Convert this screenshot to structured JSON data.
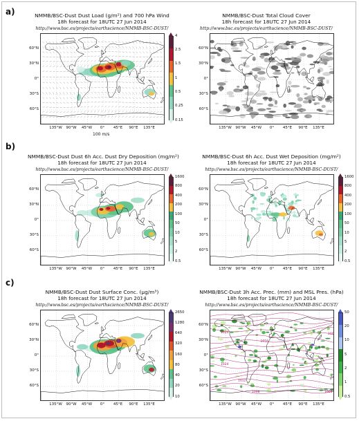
{
  "panel_letters": [
    "a)",
    "b)",
    "c)"
  ],
  "source_url": "http://www.bsc.es/projects/earthscience/NMMB-BSC-DUST/",
  "lat_labels": [
    "60°N",
    "30°N",
    "0°",
    "30°S",
    "60°S"
  ],
  "lon_labels": [
    "135°W",
    "90°W",
    "45°W",
    "0°",
    "45°E",
    "90°E",
    "135°E"
  ],
  "panels": [
    {
      "title": "NMMB/BSC-Dust Dust Load (g/m²) and 700 hPa Wind",
      "subtitle": "18h forecast for 18UTC 27 Jun 2014",
      "vector_key": "100 m/s",
      "colorbar": {
        "labels": [
          "4",
          "2.5",
          "1.5",
          "1",
          "0.5",
          "0.25",
          "0.15"
        ],
        "colors": [
          "#5b1f3c",
          "#b2182b",
          "#e8652b",
          "#f5c13d",
          "#5ec28a",
          "#8fd6c0",
          "#d7efe9"
        ]
      }
    },
    {
      "title": "NMMB/BSC-Dust Total Cloud Cover",
      "subtitle": "18h forecast for 18UTC 27 Jun 2014"
    },
    {
      "title": "NMMB/BSC-Dust Dust 6h Acc. Dust Dry Deposition (mg/m²)",
      "subtitle": "18h forecast for 18UTC 27 Jun 2014",
      "colorbar": {
        "labels": [
          "1600",
          "800",
          "400",
          "200",
          "100",
          "50",
          "10",
          "5",
          "2",
          "0.5"
        ],
        "colors": [
          "#5b1f3c",
          "#b2182b",
          "#e8652b",
          "#f5c13d",
          "#3aa67a",
          "#5ec28a",
          "#7ccfa8",
          "#a3dfc9",
          "#c5ece0",
          "#e6f6f1"
        ]
      }
    },
    {
      "title": "NMMB/BSC-Dust 6h Acc. Dust Wet Deposition (mg/m²)",
      "subtitle": "18h forecast for 18UTC 27 Jun 2014",
      "colorbar": {
        "labels": [
          "1600",
          "800",
          "400",
          "200",
          "100",
          "50",
          "10",
          "5",
          "2",
          "0.5"
        ],
        "colors": [
          "#5b1f3c",
          "#b2182b",
          "#e8652b",
          "#f5c13d",
          "#3aa67a",
          "#5ec28a",
          "#7ccfa8",
          "#a3dfc9",
          "#c5ece0",
          "#e6f6f1"
        ]
      }
    },
    {
      "title": "NMMB/BSC-Dust Dust Surface Conc. (μg/m³)",
      "subtitle": "18h forecast for 18UTC 27 Jun 2014",
      "colorbar": {
        "labels": [
          "2650",
          "1280",
          "640",
          "320",
          "160",
          "80",
          "40",
          "20",
          "10"
        ],
        "colors": [
          "#4b3a78",
          "#7a2e6a",
          "#b2182b",
          "#e2562c",
          "#f0a03c",
          "#f5c13d",
          "#5ec28a",
          "#8fd6c0",
          "#d7efe9"
        ]
      }
    },
    {
      "title": "NMMB/BSC-Dust 3h Acc. Prec. (mm) and MSL Pres. (hPa)",
      "subtitle": "18h forecast for 18UTC 27 Jun 2014",
      "isobar_labels": [
        "1020",
        "1016",
        "1024",
        "1012",
        "1008",
        "1004",
        "1000"
      ],
      "colorbar": {
        "labels": [
          "50",
          "20",
          "10",
          "5",
          "2",
          "1",
          "0.5"
        ],
        "colors": [
          "#4a5bc8",
          "#6f90e0",
          "#a9c7f0",
          "#1f8a2a",
          "#3fb34a",
          "#7fd46b",
          "#c6ef9e"
        ]
      }
    }
  ]
}
